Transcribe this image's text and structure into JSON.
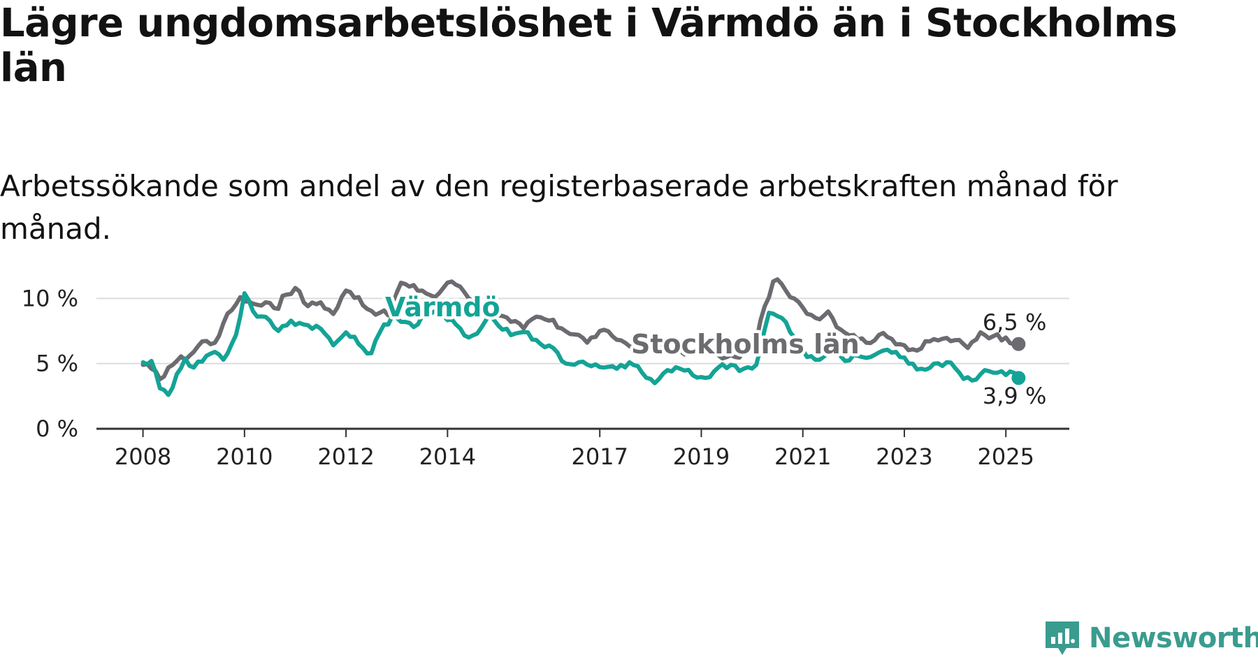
{
  "title": "Lägre ungdomsarbetslöshet i Värmdö än i Stockholms län",
  "subtitle": "Arbetssökande som andel av den registerbaserade arbetskraften månad för månad.",
  "brand": {
    "name": "Newsworthy",
    "icon": "newsworthy-logo-icon",
    "color": "#3a9c8e"
  },
  "chart_data": {
    "type": "line",
    "x_start": "2008-01",
    "x_end": "2025-04",
    "xlim": [
      "2007-02",
      "2026-04"
    ],
    "x_ticks": [
      "2008",
      "2010",
      "2012",
      "2014",
      "2017",
      "2019",
      "2021",
      "2023",
      "2025"
    ],
    "y_ticks": [
      0,
      5,
      10
    ],
    "y_tick_labels": [
      "0 %",
      "5 %",
      "10 %"
    ],
    "ylim": [
      0,
      12
    ],
    "grid": true,
    "legend": "direct labels on lines",
    "series": [
      {
        "name": "Stockholms län",
        "color": "#6b6b70",
        "end_label": "6,5 %",
        "anchors": [
          [
            "2008-01",
            4.9
          ],
          [
            "2008-03",
            4.6
          ],
          [
            "2008-05",
            3.8
          ],
          [
            "2008-07",
            4.7
          ],
          [
            "2008-09",
            5.2
          ],
          [
            "2008-12",
            5.6
          ],
          [
            "2009-03",
            6.7
          ],
          [
            "2009-06",
            6.6
          ],
          [
            "2009-08",
            8.1
          ],
          [
            "2009-10",
            9.1
          ],
          [
            "2009-12",
            10.1
          ],
          [
            "2010-03",
            9.6
          ],
          [
            "2010-06",
            9.7
          ],
          [
            "2010-09",
            9.2
          ],
          [
            "2010-10",
            10.2
          ],
          [
            "2011-01",
            10.8
          ],
          [
            "2011-04",
            9.4
          ],
          [
            "2011-07",
            9.7
          ],
          [
            "2011-10",
            8.8
          ],
          [
            "2012-01",
            10.6
          ],
          [
            "2012-04",
            10.1
          ],
          [
            "2012-06",
            9.2
          ],
          [
            "2012-09",
            8.9
          ],
          [
            "2012-11",
            8.7
          ],
          [
            "2013-02",
            11.2
          ],
          [
            "2013-04",
            10.9
          ],
          [
            "2013-07",
            10.6
          ],
          [
            "2013-10",
            10.1
          ],
          [
            "2013-12",
            10.8
          ],
          [
            "2014-02",
            11.3
          ],
          [
            "2014-04",
            10.9
          ],
          [
            "2014-07",
            9.8
          ],
          [
            "2014-10",
            9.2
          ],
          [
            "2015-01",
            8.7
          ],
          [
            "2015-04",
            8.2
          ],
          [
            "2015-07",
            7.7
          ],
          [
            "2015-10",
            8.6
          ],
          [
            "2016-01",
            8.3
          ],
          [
            "2016-04",
            7.7
          ],
          [
            "2016-08",
            7.2
          ],
          [
            "2016-10",
            6.6
          ],
          [
            "2017-01",
            7.5
          ],
          [
            "2017-04",
            7.1
          ],
          [
            "2017-07",
            6.6
          ],
          [
            "2017-09",
            6.2
          ],
          [
            "2017-12",
            6.9
          ],
          [
            "2018-03",
            6.5
          ],
          [
            "2018-06",
            6.1
          ],
          [
            "2018-09",
            5.7
          ],
          [
            "2018-12",
            6.2
          ],
          [
            "2019-03",
            5.9
          ],
          [
            "2019-06",
            5.4
          ],
          [
            "2019-09",
            5.5
          ],
          [
            "2019-12",
            5.9
          ],
          [
            "2020-02",
            6.7
          ],
          [
            "2020-04",
            9.4
          ],
          [
            "2020-06",
            11.3
          ],
          [
            "2020-08",
            11.1
          ],
          [
            "2020-10",
            10.1
          ],
          [
            "2021-01",
            9.3
          ],
          [
            "2021-04",
            8.5
          ],
          [
            "2021-07",
            9.0
          ],
          [
            "2021-10",
            7.6
          ],
          [
            "2022-01",
            7.2
          ],
          [
            "2022-04",
            6.6
          ],
          [
            "2022-07",
            7.2
          ],
          [
            "2022-10",
            6.9
          ],
          [
            "2023-01",
            6.4
          ],
          [
            "2023-04",
            6.0
          ],
          [
            "2023-07",
            6.7
          ],
          [
            "2023-10",
            6.9
          ],
          [
            "2024-01",
            6.8
          ],
          [
            "2024-04",
            6.2
          ],
          [
            "2024-07",
            7.4
          ],
          [
            "2024-10",
            7.1
          ],
          [
            "2025-01",
            7.0
          ],
          [
            "2025-04",
            6.5
          ]
        ]
      },
      {
        "name": "Värmdö",
        "color": "#14a396",
        "end_label": "3,9 %",
        "anchors": [
          [
            "2008-01",
            5.1
          ],
          [
            "2008-03",
            5.2
          ],
          [
            "2008-05",
            3.1
          ],
          [
            "2008-07",
            2.6
          ],
          [
            "2008-09",
            4.2
          ],
          [
            "2008-11",
            5.4
          ],
          [
            "2009-01",
            4.7
          ],
          [
            "2009-04",
            5.6
          ],
          [
            "2009-06",
            5.9
          ],
          [
            "2009-08",
            5.3
          ],
          [
            "2009-11",
            7.2
          ],
          [
            "2010-01",
            10.4
          ],
          [
            "2010-04",
            8.6
          ],
          [
            "2010-07",
            8.3
          ],
          [
            "2010-09",
            7.5
          ],
          [
            "2010-12",
            8.3
          ],
          [
            "2011-03",
            8.0
          ],
          [
            "2011-06",
            7.9
          ],
          [
            "2011-08",
            7.3
          ],
          [
            "2011-10",
            6.4
          ],
          [
            "2012-01",
            7.4
          ],
          [
            "2012-04",
            6.5
          ],
          [
            "2012-07",
            5.8
          ],
          [
            "2012-09",
            7.4
          ],
          [
            "2012-12",
            8.7
          ],
          [
            "2013-03",
            8.2
          ],
          [
            "2013-05",
            7.8
          ],
          [
            "2013-08",
            8.7
          ],
          [
            "2013-11",
            8.9
          ],
          [
            "2014-02",
            8.4
          ],
          [
            "2014-04",
            7.7
          ],
          [
            "2014-06",
            7.0
          ],
          [
            "2014-08",
            7.3
          ],
          [
            "2014-11",
            8.8
          ],
          [
            "2015-02",
            7.6
          ],
          [
            "2015-05",
            7.3
          ],
          [
            "2015-08",
            7.4
          ],
          [
            "2015-11",
            6.5
          ],
          [
            "2016-02",
            6.2
          ],
          [
            "2016-05",
            5.0
          ],
          [
            "2016-08",
            5.1
          ],
          [
            "2016-11",
            4.8
          ],
          [
            "2017-02",
            4.7
          ],
          [
            "2017-05",
            4.6
          ],
          [
            "2017-08",
            5.1
          ],
          [
            "2017-11",
            4.3
          ],
          [
            "2018-02",
            3.5
          ],
          [
            "2018-05",
            4.5
          ],
          [
            "2018-08",
            4.6
          ],
          [
            "2018-11",
            4.1
          ],
          [
            "2019-02",
            3.9
          ],
          [
            "2019-05",
            4.7
          ],
          [
            "2019-08",
            4.9
          ],
          [
            "2019-11",
            4.6
          ],
          [
            "2020-02",
            4.9
          ],
          [
            "2020-05",
            8.9
          ],
          [
            "2020-08",
            8.5
          ],
          [
            "2020-11",
            7.0
          ],
          [
            "2021-02",
            5.5
          ],
          [
            "2021-05",
            5.3
          ],
          [
            "2021-08",
            6.3
          ],
          [
            "2021-11",
            5.2
          ],
          [
            "2022-02",
            5.6
          ],
          [
            "2022-05",
            5.5
          ],
          [
            "2022-08",
            6.0
          ],
          [
            "2022-11",
            5.9
          ],
          [
            "2023-02",
            5.0
          ],
          [
            "2023-05",
            4.6
          ],
          [
            "2023-08",
            5.0
          ],
          [
            "2023-11",
            5.1
          ],
          [
            "2024-02",
            4.3
          ],
          [
            "2024-05",
            3.7
          ],
          [
            "2024-08",
            4.5
          ],
          [
            "2024-11",
            4.3
          ],
          [
            "2025-02",
            4.4
          ],
          [
            "2025-04",
            3.9
          ]
        ]
      }
    ]
  }
}
